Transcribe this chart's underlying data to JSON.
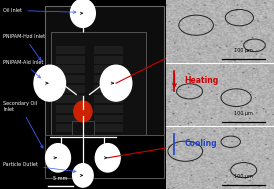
{
  "fig_bg": "#000000",
  "chip_bg": "#000000",
  "chip_border_color": "#666666",
  "inner_rect_color": "#333333",
  "comb_color": "#2a2a2a",
  "channel_color": "white",
  "circle_color": "white",
  "red_circle_color": "#cc2200",
  "label_color": "white",
  "arrow_color": "#4466ff",
  "red_line_color": "#cc0000",
  "blue_line_color": "#2244cc",
  "scale_bar_color": "white",
  "heating_color": "#cc0000",
  "cooling_color": "#2244cc",
  "micro_bg": "#b8b8b8",
  "divider_color": "white",
  "labels": [
    "Oil Inlet",
    "PNIPAM-Hzd Inlet",
    "PNIPAM-Ald Inlet",
    "Secondary Oil\nInlet",
    "Particle Outlet"
  ],
  "scale_bar_text": "5 mm",
  "heating_text": "Heating",
  "cooling_text": "Cooling",
  "scale_text": "100 μm"
}
